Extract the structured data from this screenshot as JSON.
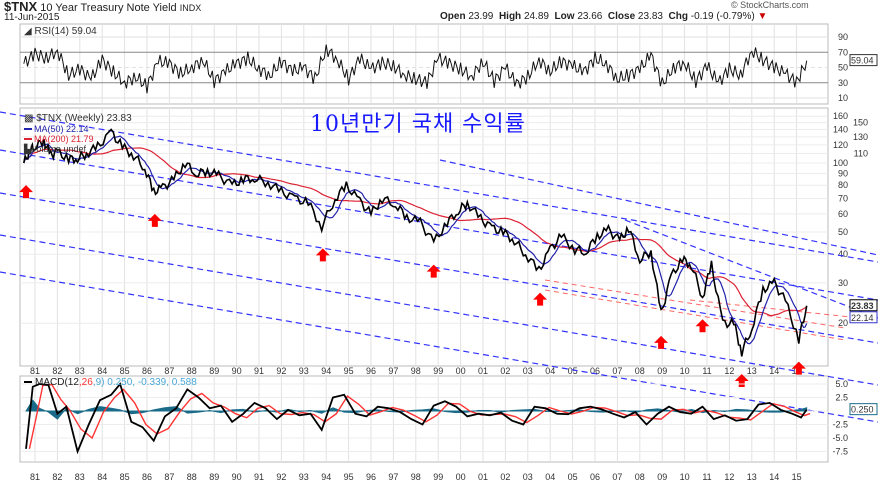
{
  "header": {
    "symbol": "$TNX",
    "name": "10 Year Treasury Note Yield",
    "exchange": "INDX",
    "date": "11-Jun-2015",
    "credit": "© StockCharts.com",
    "open_label": "Open",
    "open": "23.99",
    "high_label": "High",
    "high": "24.89",
    "low_label": "Low",
    "low": "23.66",
    "close_label": "Close",
    "close": "23.83",
    "chg_label": "Chg",
    "chg": "-0.19 (-0.79%)"
  },
  "annotation": "10년만기 국채 수익률",
  "colors": {
    "price": "#000000",
    "ma50": "#2222aa",
    "ma200": "#dd2233",
    "channel": "#3333ff",
    "arrow": "#ff0000",
    "histogram": "#1a6b8a",
    "signal": "#ff3333"
  },
  "chart_data": [
    {
      "type": "line",
      "title": "RSI(14) 59.04",
      "legend": "RSI(14) 59.04",
      "current_label": "59.04",
      "yticks": [
        "90",
        "70",
        "50",
        "30",
        "10"
      ],
      "ylim": [
        0,
        100
      ],
      "x": [
        1980.5,
        1981,
        1981.5,
        1982,
        1982.5,
        1983,
        1983.5,
        1984,
        1984.5,
        1985,
        1985.5,
        1986,
        1986.5,
        1987,
        1987.5,
        1988,
        1988.5,
        1989,
        1989.5,
        1990,
        1990.5,
        1991,
        1991.5,
        1992,
        1992.5,
        1993,
        1993.5,
        1994,
        1994.5,
        1995,
        1995.5,
        1996,
        1996.5,
        1997,
        1997.5,
        1998,
        1998.5,
        1999,
        1999.5,
        2000,
        2000.5,
        2001,
        2001.5,
        2002,
        2002.5,
        2003,
        2003.5,
        2004,
        2004.5,
        2005,
        2005.5,
        2006,
        2006.5,
        2007,
        2007.5,
        2008,
        2008.5,
        2009,
        2009.5,
        2010,
        2010.5,
        2011,
        2011.5,
        2012,
        2012.5,
        2013,
        2013.5,
        2014,
        2014.5,
        2015,
        2015.45
      ],
      "values": [
        55,
        68,
        62,
        72,
        40,
        48,
        35,
        60,
        44,
        30,
        38,
        25,
        58,
        55,
        42,
        50,
        60,
        32,
        45,
        55,
        62,
        48,
        40,
        58,
        45,
        50,
        35,
        75,
        60,
        35,
        62,
        48,
        56,
        52,
        40,
        35,
        30,
        62,
        55,
        48,
        38,
        58,
        32,
        50,
        28,
        38,
        60,
        45,
        58,
        52,
        44,
        62,
        55,
        35,
        40,
        48,
        66,
        28,
        50,
        56,
        32,
        52,
        30,
        48,
        40,
        72,
        60,
        50,
        42,
        30,
        59
      ]
    },
    {
      "type": "line",
      "title": "$TNX (Weekly) 23.83",
      "legend": [
        {
          "name": "$TNX (Weekly) 23.83"
        },
        {
          "name": "MA(50) 22.14"
        },
        {
          "name": "MA(200) 21.79"
        },
        {
          "name": "Volume undef"
        }
      ],
      "yscale": "log",
      "yticks": [
        "160",
        "150",
        "140",
        "130",
        "120",
        "110",
        "100",
        "90",
        "80",
        "70",
        "60",
        "50",
        "40",
        "30",
        "20"
      ],
      "xticks": [
        "81",
        "82",
        "83",
        "84",
        "85",
        "86",
        "87",
        "88",
        "89",
        "90",
        "91",
        "92",
        "93",
        "94",
        "95",
        "96",
        "97",
        "98",
        "99",
        "00",
        "01",
        "02",
        "03",
        "04",
        "05",
        "06",
        "07",
        "08",
        "09",
        "10",
        "11",
        "12",
        "13",
        "14",
        "15"
      ],
      "current_label": "23.83",
      "ma50_label": "22.14",
      "x": [
        1980.5,
        1980.8,
        1981.0,
        1981.4,
        1981.7,
        1982.0,
        1982.5,
        1982.9,
        1983.3,
        1983.8,
        1984.4,
        1984.9,
        1985.4,
        1985.9,
        1986.3,
        1986.7,
        1987.2,
        1987.7,
        1988.2,
        1988.7,
        1989.2,
        1989.8,
        1990.3,
        1990.8,
        1991.4,
        1992.0,
        1992.6,
        1993.2,
        1993.8,
        1994.4,
        1994.9,
        1995.5,
        1996.0,
        1996.5,
        1997.1,
        1997.6,
        1998.2,
        1998.8,
        1999.4,
        1999.9,
        2000.3,
        2000.9,
        2001.4,
        2001.9,
        2002.4,
        2002.9,
        2003.5,
        2004.0,
        2004.5,
        2005.1,
        2005.6,
        2006.1,
        2006.6,
        2007.1,
        2007.5,
        2008.0,
        2008.5,
        2008.95,
        2009.4,
        2009.9,
        2010.3,
        2010.8,
        2011.2,
        2011.7,
        2012.2,
        2012.55,
        2013.0,
        2013.5,
        2014.0,
        2014.5,
        2015.1,
        2015.45
      ],
      "values": [
        100,
        115,
        118,
        125,
        108,
        112,
        104,
        105,
        110,
        118,
        136,
        118,
        108,
        95,
        75,
        78,
        85,
        100,
        90,
        92,
        88,
        80,
        85,
        86,
        82,
        75,
        70,
        67,
        53,
        70,
        80,
        68,
        60,
        70,
        66,
        58,
        55,
        45,
        55,
        62,
        67,
        57,
        52,
        50,
        46,
        40,
        34,
        42,
        48,
        42,
        41,
        48,
        51,
        46,
        52,
        38,
        41,
        22,
        32,
        38,
        36,
        26,
        36,
        20,
        20,
        15,
        19,
        28,
        30,
        25,
        17,
        23.83
      ],
      "arrows_at_years": [
        1980.6,
        1986.35,
        1993.85,
        1998.8,
        2003.55,
        2008.95,
        2010.8,
        2012.55,
        2015.1
      ]
    },
    {
      "type": "line",
      "title": "MACD(12,26,9) 0.250, -0.339, 0.588",
      "legend": {
        "macd": "MACD(12,26,9) 0.250",
        "signal": ", -0.339",
        "hist": ", 0.588"
      },
      "current_label": "0.250",
      "yticks": [
        "5.0",
        "2.5",
        "0",
        "-2.5",
        "-5.0",
        "-7.5"
      ],
      "ylim": [
        -8.5,
        6
      ],
      "xticks": [
        "81",
        "82",
        "83",
        "84",
        "85",
        "86",
        "87",
        "88",
        "89",
        "90",
        "91",
        "92",
        "93",
        "94",
        "95",
        "96",
        "97",
        "98",
        "99",
        "00",
        "01",
        "02",
        "03",
        "04",
        "05",
        "06",
        "07",
        "08",
        "09",
        "10",
        "11",
        "12",
        "13",
        "14",
        "15"
      ],
      "x": [
        1980.6,
        1980.9,
        1981.2,
        1981.6,
        1982.0,
        1982.4,
        1982.9,
        1983.4,
        1983.9,
        1984.4,
        1984.8,
        1985.3,
        1985.8,
        1986.3,
        1986.8,
        1987.3,
        1987.8,
        1988.3,
        1988.8,
        1989.3,
        1989.8,
        1990.3,
        1990.8,
        1991.3,
        1991.8,
        1992.3,
        1992.8,
        1993.3,
        1993.8,
        1994.3,
        1994.8,
        1995.3,
        1995.8,
        1996.3,
        1996.8,
        1997.3,
        1997.8,
        1998.3,
        1998.8,
        1999.3,
        1999.8,
        2000.3,
        2000.8,
        2001.3,
        2001.8,
        2002.3,
        2002.8,
        2003.3,
        2003.8,
        2004.3,
        2004.8,
        2005.3,
        2005.8,
        2006.3,
        2006.8,
        2007.3,
        2007.8,
        2008.3,
        2008.8,
        2009.3,
        2009.8,
        2010.3,
        2010.8,
        2011.3,
        2011.8,
        2012.3,
        2012.8,
        2013.3,
        2013.8,
        2014.3,
        2014.8,
        2015.2,
        2015.45
      ],
      "macd": [
        -7,
        4.5,
        5,
        4.8,
        -0.5,
        0.8,
        -7.5,
        -2.5,
        2,
        3,
        5,
        -2,
        -3,
        -5.5,
        -1,
        0.5,
        4,
        2.5,
        0.5,
        1,
        -2,
        -0.5,
        1.5,
        0.5,
        -1.5,
        0.2,
        -0.8,
        -0.5,
        -3.5,
        2.5,
        3,
        -0.5,
        -1,
        0.8,
        0.5,
        -0.2,
        -1.5,
        -2.5,
        1,
        1.8,
        0.8,
        -1,
        -0.5,
        -0.8,
        -0.3,
        -1.8,
        -2.5,
        0.8,
        0.5,
        -0.5,
        -0.6,
        0.5,
        0.8,
        0.3,
        -0.5,
        -1.2,
        -0.2,
        -2.5,
        -0.5,
        0.8,
        -0.2,
        -0.5,
        0.8,
        -1.5,
        -0.8,
        -1.8,
        -1.5,
        1.2,
        1.5,
        0.2,
        -0.5,
        -1.2,
        0.25
      ],
      "hist": [
        0,
        2,
        0.5,
        -0.2,
        -1.5,
        0.5,
        -0.5,
        0.3,
        0.8,
        0.5,
        0.2,
        -0.5,
        -0.3,
        0.2,
        0.6,
        0.8,
        -0.4,
        -0.2,
        0.1,
        -0.3,
        0.2,
        0.3,
        -0.2,
        0.1,
        -0.2,
        0.3,
        -0.1,
        0.1,
        -0.4,
        0.6,
        -0.2,
        -0.3,
        0.1,
        0.2,
        -0.1,
        -0.2,
        0.1,
        0.2,
        0.4,
        -0.1,
        -0.3,
        -0.2,
        0.1,
        0.1,
        -0.2,
        0.1,
        0.2,
        0.3,
        -0.1,
        -0.1,
        0.1,
        0.2,
        -0.1,
        -0.2,
        -0.1,
        0.1,
        -0.3,
        0.2,
        0.4,
        0.1,
        -0.2,
        0.3,
        -0.3,
        0.1,
        -0.1,
        0.3,
        0.2,
        -0.1,
        -0.2,
        -0.2,
        0.1,
        0.3,
        0.59
      ]
    }
  ]
}
